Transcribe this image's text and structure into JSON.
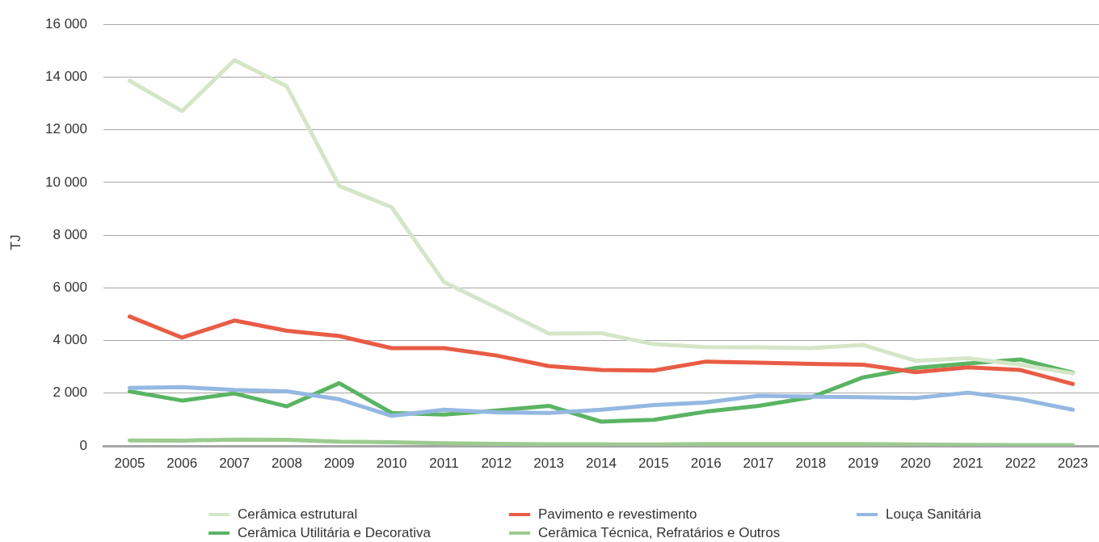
{
  "chart_data": {
    "type": "line",
    "ylabel": "TJ",
    "categories": [
      "2005",
      "2006",
      "2007",
      "2008",
      "2009",
      "2010",
      "2011",
      "2012",
      "2013",
      "2014",
      "2015",
      "2016",
      "2017",
      "2018",
      "2019",
      "2020",
      "2021",
      "2022",
      "2023"
    ],
    "series": [
      {
        "name": "Cerâmica estrutural",
        "color": "#d5e6c8",
        "values": [
          13860,
          12710,
          14640,
          13650,
          9870,
          9060,
          6220,
          5250,
          4260,
          4280,
          3860,
          3750,
          3740,
          3710,
          3830,
          3230,
          3330,
          3080,
          2750
        ]
      },
      {
        "name": "Pavimento e revestimento",
        "color": "#e95c45",
        "values": [
          4910,
          4110,
          4760,
          4370,
          4170,
          3710,
          3710,
          3430,
          3030,
          2880,
          2860,
          3200,
          3160,
          3110,
          3080,
          2800,
          2980,
          2880,
          2350
        ]
      },
      {
        "name": "Louça Sanitária",
        "color": "#94b8e2",
        "values": [
          2200,
          2230,
          2120,
          2070,
          1770,
          1140,
          1370,
          1270,
          1250,
          1370,
          1550,
          1650,
          1900,
          1870,
          1850,
          1820,
          2020,
          1770,
          1370
        ]
      },
      {
        "name": "Cerâmica Utilitária e Decorativa",
        "color": "#5ab463",
        "values": [
          2070,
          1720,
          1990,
          1500,
          2380,
          1250,
          1190,
          1340,
          1520,
          920,
          990,
          1300,
          1520,
          1840,
          2600,
          2960,
          3130,
          3280,
          2780
        ]
      },
      {
        "name": "Cerâmica Técnica, Refratários e Outros",
        "color": "#9ccb8f",
        "values": [
          210,
          200,
          240,
          230,
          160,
          140,
          100,
          80,
          60,
          60,
          50,
          70,
          70,
          70,
          70,
          50,
          40,
          30,
          30
        ]
      }
    ],
    "ylim": [
      0,
      16000
    ],
    "yticks": [
      0,
      {
        "value": 2000,
        "label": "2 000"
      },
      {
        "value": 4000,
        "label": "4 000"
      },
      {
        "value": 6000,
        "label": "6 000"
      },
      {
        "value": 8000,
        "label": "8 000"
      },
      {
        "value": 10000,
        "label": "10 000"
      },
      {
        "value": 12000,
        "label": "12 000"
      },
      {
        "value": 14000,
        "label": "14 000"
      },
      {
        "value": 16000,
        "label": "16 000"
      }
    ],
    "grid": "y",
    "legend": "bottom",
    "marker": "none",
    "line_style": "solid"
  }
}
